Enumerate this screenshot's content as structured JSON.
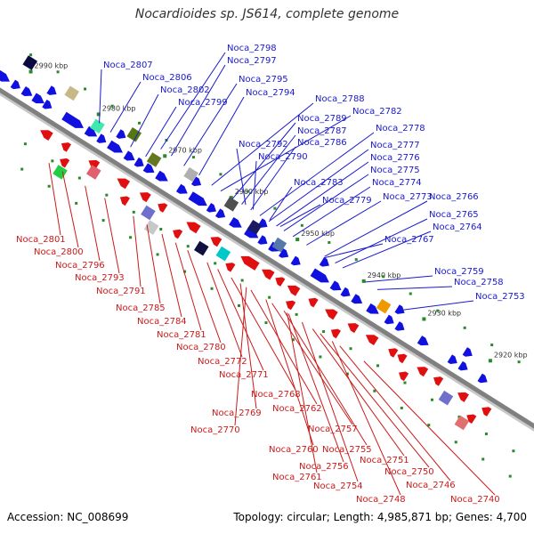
{
  "title": "Nocardioides sp. JS614, complete genome",
  "accession_text": "Accession: NC_008699",
  "summary_text": "Topology: circular; Length: 4,985,871 bp; Genes: 4,700",
  "colors": {
    "forward_strand": "#1010e0",
    "reverse_strand": "#e01010",
    "label_forward": "#1a1acc",
    "label_reverse": "#cc1a1a",
    "backbone": "#808080",
    "marker": "#2a8a2a"
  },
  "ticks": [
    "2990 kbp",
    "2980 kbp",
    "2970 kbp",
    "2960 kbp",
    "2950 kbp",
    "2940 kbp",
    "2930 kbp",
    "2920 kbp"
  ],
  "forward_labels": [
    "Noca_2807",
    "Noca_2806",
    "Noca_2802",
    "Noca_2799",
    "Noca_2798",
    "Noca_2797",
    "Noca_2795",
    "Noca_2794",
    "Noca_2788",
    "Noca_2782",
    "Noca_2789",
    "Noca_2787",
    "Noca_2786",
    "Noca_2792",
    "Noca_2790",
    "Noca_2778",
    "Noca_2777",
    "Noca_2776",
    "Noca_2775",
    "Noca_2774",
    "Noca_2783",
    "Noca_2779",
    "Noca_2773",
    "Noca_2766",
    "Noca_2765",
    "Noca_2764",
    "Noca_2767",
    "Noca_2759",
    "Noca_2758",
    "Noca_2753"
  ],
  "reverse_labels": [
    "Noca_2801",
    "Noca_2800",
    "Noca_2796",
    "Noca_2793",
    "Noca_2791",
    "Noca_2785",
    "Noca_2784",
    "Noca_2781",
    "Noca_2780",
    "Noca_2772",
    "Noca_2771",
    "Noca_2768",
    "Noca_2762",
    "Noca_2769",
    "Noca_2770",
    "Noca_2757",
    "Noca_2760",
    "Noca_2755",
    "Noca_2756",
    "Noca_2761",
    "Noca_2751",
    "Noca_2750",
    "Noca_2754",
    "Noca_2746",
    "Noca_2748",
    "Noca_2740"
  ]
}
